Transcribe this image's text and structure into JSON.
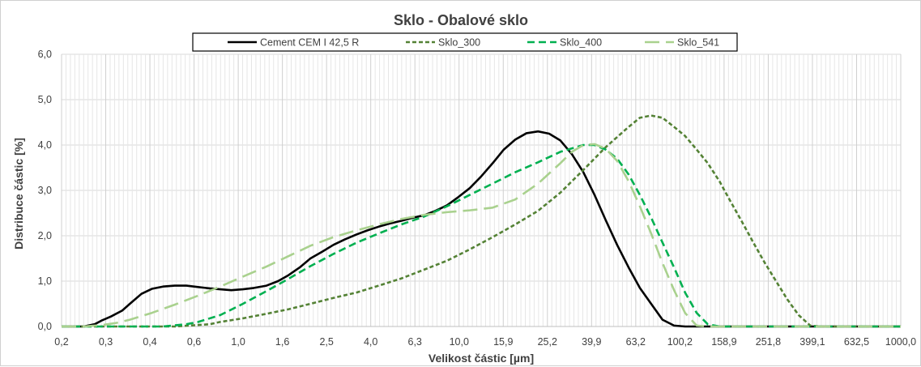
{
  "chart_data": {
    "type": "line",
    "title": "Sklo - Obalové sklo",
    "xlabel": "Velikost částic [µm]",
    "ylabel": "Distribuce částic [%]",
    "ylim": [
      0,
      6
    ],
    "yticks": [
      "0,0",
      "1,0",
      "2,0",
      "3,0",
      "4,0",
      "5,0",
      "6,0"
    ],
    "xtick_labels": [
      "0,2",
      "0,3",
      "0,4",
      "0,6",
      "1,0",
      "1,6",
      "2,5",
      "4,0",
      "6,3",
      "10,0",
      "15,9",
      "25,2",
      "39,9",
      "63,2",
      "100,2",
      "158,9",
      "251,8",
      "399,1",
      "632,5",
      "1000,0"
    ],
    "x_scale": "log",
    "grid": "vertical-major-minor-horizontal-major",
    "legend": "top",
    "series": [
      {
        "name": "Cement CEM I 42,5 R",
        "color": "#000000",
        "dash": "solid",
        "points": [
          [
            0.2,
            0
          ],
          [
            0.25,
            0
          ],
          [
            0.28,
            0.05
          ],
          [
            0.3,
            0.13
          ],
          [
            0.33,
            0.22
          ],
          [
            0.37,
            0.35
          ],
          [
            0.4,
            0.5
          ],
          [
            0.45,
            0.72
          ],
          [
            0.5,
            0.83
          ],
          [
            0.56,
            0.88
          ],
          [
            0.63,
            0.9
          ],
          [
            0.71,
            0.9
          ],
          [
            0.8,
            0.87
          ],
          [
            0.9,
            0.84
          ],
          [
            1.0,
            0.82
          ],
          [
            1.12,
            0.8
          ],
          [
            1.26,
            0.82
          ],
          [
            1.41,
            0.85
          ],
          [
            1.6,
            0.9
          ],
          [
            1.8,
            1.0
          ],
          [
            2.0,
            1.13
          ],
          [
            2.24,
            1.3
          ],
          [
            2.5,
            1.5
          ],
          [
            2.82,
            1.65
          ],
          [
            3.16,
            1.8
          ],
          [
            3.55,
            1.92
          ],
          [
            4.0,
            2.03
          ],
          [
            4.47,
            2.12
          ],
          [
            5.0,
            2.2
          ],
          [
            5.6,
            2.27
          ],
          [
            6.3,
            2.33
          ],
          [
            7.1,
            2.4
          ],
          [
            7.9,
            2.45
          ],
          [
            8.9,
            2.55
          ],
          [
            10.0,
            2.67
          ],
          [
            11.2,
            2.85
          ],
          [
            12.6,
            3.05
          ],
          [
            14.1,
            3.3
          ],
          [
            15.9,
            3.6
          ],
          [
            17.8,
            3.9
          ],
          [
            20.0,
            4.12
          ],
          [
            22.4,
            4.26
          ],
          [
            25.2,
            4.3
          ],
          [
            28.2,
            4.25
          ],
          [
            31.6,
            4.1
          ],
          [
            35.5,
            3.8
          ],
          [
            39.9,
            3.4
          ],
          [
            44.7,
            2.9
          ],
          [
            50.0,
            2.35
          ],
          [
            56.2,
            1.8
          ],
          [
            63.2,
            1.3
          ],
          [
            70.8,
            0.85
          ],
          [
            79.4,
            0.5
          ],
          [
            89.1,
            0.15
          ],
          [
            100.2,
            0.02
          ],
          [
            112,
            0
          ],
          [
            1000,
            0
          ]
        ]
      },
      {
        "name": "Sklo_300",
        "color": "#548235",
        "dash": "short",
        "points": [
          [
            0.2,
            0
          ],
          [
            0.63,
            0
          ],
          [
            0.9,
            0.05
          ],
          [
            1.0,
            0.1
          ],
          [
            1.26,
            0.18
          ],
          [
            1.6,
            0.28
          ],
          [
            2.0,
            0.38
          ],
          [
            2.5,
            0.5
          ],
          [
            3.16,
            0.63
          ],
          [
            4.0,
            0.75
          ],
          [
            5.0,
            0.9
          ],
          [
            6.3,
            1.06
          ],
          [
            7.9,
            1.25
          ],
          [
            10.0,
            1.45
          ],
          [
            12.6,
            1.7
          ],
          [
            15.9,
            1.97
          ],
          [
            20.0,
            2.25
          ],
          [
            25.2,
            2.55
          ],
          [
            31.6,
            2.95
          ],
          [
            39.9,
            3.45
          ],
          [
            50.0,
            3.95
          ],
          [
            63.2,
            4.4
          ],
          [
            70.8,
            4.6
          ],
          [
            79.4,
            4.65
          ],
          [
            89.1,
            4.6
          ],
          [
            100.2,
            4.4
          ],
          [
            112,
            4.2
          ],
          [
            126,
            3.9
          ],
          [
            141,
            3.6
          ],
          [
            158.9,
            3.2
          ],
          [
            178,
            2.75
          ],
          [
            200,
            2.3
          ],
          [
            224,
            1.85
          ],
          [
            251.8,
            1.4
          ],
          [
            282,
            1.0
          ],
          [
            316,
            0.6
          ],
          [
            355,
            0.25
          ],
          [
            399.1,
            0.02
          ],
          [
            447,
            0
          ],
          [
            1000,
            0
          ]
        ]
      },
      {
        "name": "Sklo_400",
        "color": "#00B050",
        "dash": "medium",
        "points": [
          [
            0.2,
            0
          ],
          [
            0.56,
            0
          ],
          [
            0.71,
            0.05
          ],
          [
            0.8,
            0.1
          ],
          [
            1.0,
            0.25
          ],
          [
            1.26,
            0.5
          ],
          [
            1.6,
            0.78
          ],
          [
            2.0,
            1.05
          ],
          [
            2.5,
            1.33
          ],
          [
            3.16,
            1.6
          ],
          [
            4.0,
            1.85
          ],
          [
            5.0,
            2.05
          ],
          [
            6.3,
            2.25
          ],
          [
            7.9,
            2.42
          ],
          [
            10.0,
            2.65
          ],
          [
            12.6,
            2.9
          ],
          [
            15.9,
            3.15
          ],
          [
            20.0,
            3.4
          ],
          [
            25.2,
            3.62
          ],
          [
            31.6,
            3.85
          ],
          [
            39.9,
            4.0
          ],
          [
            44.7,
            4.0
          ],
          [
            50.0,
            3.9
          ],
          [
            56.2,
            3.7
          ],
          [
            63.2,
            3.35
          ],
          [
            70.8,
            2.9
          ],
          [
            79.4,
            2.4
          ],
          [
            89.1,
            1.85
          ],
          [
            100.2,
            1.3
          ],
          [
            112,
            0.75
          ],
          [
            126,
            0.3
          ],
          [
            141,
            0.05
          ],
          [
            158.9,
            0
          ],
          [
            1000,
            0
          ]
        ]
      },
      {
        "name": "Sklo_541",
        "color": "#A9D18E",
        "dash": "long",
        "points": [
          [
            0.2,
            0
          ],
          [
            0.25,
            0
          ],
          [
            0.3,
            0.03
          ],
          [
            0.35,
            0.08
          ],
          [
            0.4,
            0.15
          ],
          [
            0.5,
            0.3
          ],
          [
            0.63,
            0.48
          ],
          [
            0.8,
            0.68
          ],
          [
            1.0,
            0.88
          ],
          [
            1.26,
            1.1
          ],
          [
            1.6,
            1.32
          ],
          [
            2.0,
            1.55
          ],
          [
            2.5,
            1.78
          ],
          [
            3.16,
            1.97
          ],
          [
            4.0,
            2.12
          ],
          [
            5.0,
            2.25
          ],
          [
            6.3,
            2.37
          ],
          [
            7.9,
            2.46
          ],
          [
            10.0,
            2.52
          ],
          [
            12.6,
            2.56
          ],
          [
            15.9,
            2.62
          ],
          [
            20.0,
            2.8
          ],
          [
            25.2,
            3.15
          ],
          [
            31.6,
            3.6
          ],
          [
            35.5,
            3.85
          ],
          [
            39.9,
            4.0
          ],
          [
            44.7,
            4.02
          ],
          [
            50.0,
            3.92
          ],
          [
            56.2,
            3.65
          ],
          [
            63.2,
            3.2
          ],
          [
            70.8,
            2.65
          ],
          [
            79.4,
            2.05
          ],
          [
            89.1,
            1.4
          ],
          [
            100.2,
            0.8
          ],
          [
            112,
            0.3
          ],
          [
            126,
            0.02
          ],
          [
            141,
            0
          ],
          [
            1000,
            0
          ]
        ]
      }
    ]
  }
}
